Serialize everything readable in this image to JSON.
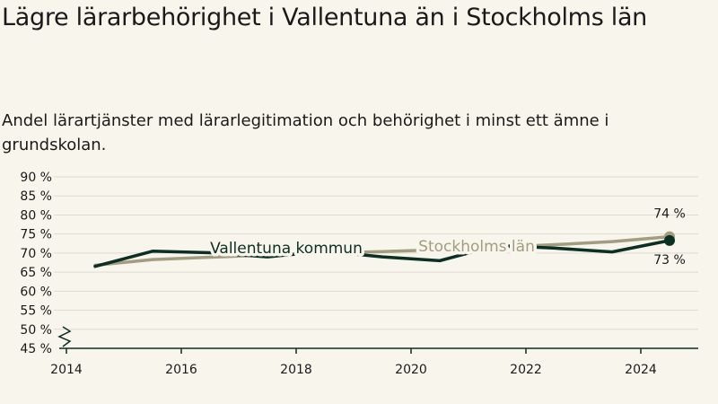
{
  "title": "Lägre lärarbehörighet i Vallentuna än i Stockholms län",
  "subtitle": "Andel lärartjänster med lärarlegitimation och behörighet i minst ett ämne i grundskolan.",
  "colors": {
    "background": "#f8f5ec",
    "vallentuna": "#0c2f24",
    "stockholm": "#a39d80",
    "grid": "#dedbd2",
    "axis": "#0c2f24"
  },
  "chart_data": {
    "type": "line",
    "title": "Lägre lärarbehörighet i Vallentuna än i Stockholms län",
    "subtitle": "Andel lärartjänster med lärarlegitimation och behörighet i minst ett ämne i grundskolan.",
    "xlim": [
      2014,
      2025
    ],
    "ylim": [
      45,
      90
    ],
    "y_axis_break": true,
    "grid": true,
    "x_ticks": [
      "2014",
      "2016",
      "2018",
      "2020",
      "2022",
      "2024"
    ],
    "y_ticks": [
      "45 %",
      "50 %",
      "55 %",
      "60 %",
      "65 %",
      "70 %",
      "75 %",
      "80 %",
      "85 %",
      "90 %"
    ],
    "series": [
      {
        "name": "Vallentuna kommun",
        "color": "#0c2f24",
        "x": [
          2014.5,
          2015.5,
          2016.5,
          2017.5,
          2018.5,
          2019.5,
          2020.5,
          2021.5,
          2022.5,
          2023.5,
          2024.5
        ],
        "y": [
          66.5,
          70.5,
          70.1,
          69.0,
          70.5,
          69.0,
          68.0,
          72.0,
          71.3,
          70.3,
          73.3
        ],
        "end_label": "73 %",
        "end_label_position": "below"
      },
      {
        "name": "Stockholms län",
        "color": "#a39d80",
        "x": [
          2014.5,
          2015.5,
          2016.5,
          2017.5,
          2018.5,
          2019.5,
          2020.5,
          2021.5,
          2022.5,
          2023.5,
          2024.5
        ],
        "y": [
          66.8,
          68.3,
          68.9,
          69.5,
          70.0,
          70.4,
          70.9,
          71.5,
          72.2,
          73.0,
          74.3
        ],
        "end_label": "74 %",
        "end_label_position": "above"
      }
    ]
  }
}
